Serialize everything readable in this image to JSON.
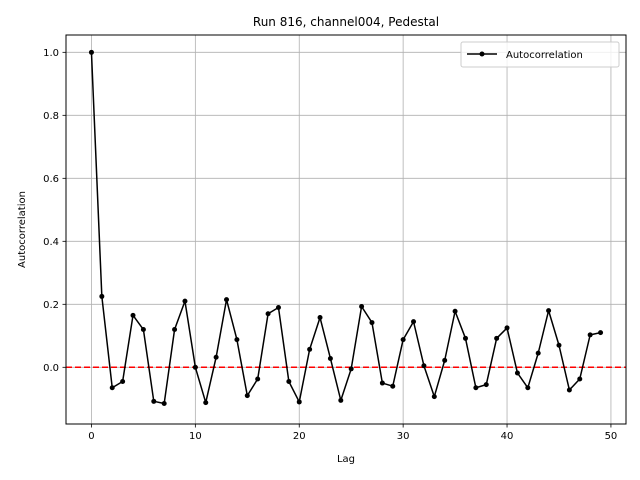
{
  "chart_data": {
    "type": "line",
    "title": "Run 816, channel004, Pedestal",
    "xlabel": "Lag",
    "ylabel": "Autocorrelation",
    "xlim": [
      -2.45,
      51.45
    ],
    "ylim": [
      -0.18,
      1.055
    ],
    "xticks": [
      0,
      10,
      20,
      30,
      40,
      50
    ],
    "yticks": [
      0.0,
      0.2,
      0.4,
      0.6,
      0.8,
      1.0
    ],
    "xtick_labels": [
      "0",
      "10",
      "20",
      "30",
      "40",
      "50"
    ],
    "ytick_labels": [
      "0.0",
      "0.2",
      "0.4",
      "0.6",
      "0.8",
      "1.0"
    ],
    "grid": true,
    "legend_position": "top-right",
    "reference_line": {
      "y": 0,
      "color": "#ff0000",
      "style": "dashed"
    },
    "series": [
      {
        "name": "Autocorrelation",
        "color": "#000000",
        "marker": "dot",
        "x": [
          0,
          1,
          2,
          3,
          4,
          5,
          6,
          7,
          8,
          9,
          10,
          11,
          12,
          13,
          14,
          15,
          16,
          17,
          18,
          19,
          20,
          21,
          22,
          23,
          24,
          25,
          26,
          27,
          28,
          29,
          30,
          31,
          32,
          33,
          34,
          35,
          36,
          37,
          38,
          39,
          40,
          41,
          42,
          43,
          44,
          45,
          46,
          47,
          48,
          49
        ],
        "values": [
          1.0,
          0.225,
          -0.065,
          -0.045,
          0.165,
          0.12,
          -0.108,
          -0.115,
          0.12,
          0.21,
          0.0,
          -0.112,
          0.032,
          0.215,
          0.088,
          -0.09,
          -0.037,
          0.17,
          0.19,
          -0.045,
          -0.11,
          0.057,
          0.158,
          0.028,
          -0.105,
          -0.005,
          0.193,
          0.142,
          -0.05,
          -0.06,
          0.088,
          0.145,
          0.005,
          -0.093,
          0.022,
          0.178,
          0.092,
          -0.065,
          -0.055,
          0.092,
          0.125,
          -0.018,
          -0.065,
          0.045,
          0.18,
          0.07,
          -0.072,
          -0.037,
          0.103,
          0.11
        ]
      }
    ]
  }
}
